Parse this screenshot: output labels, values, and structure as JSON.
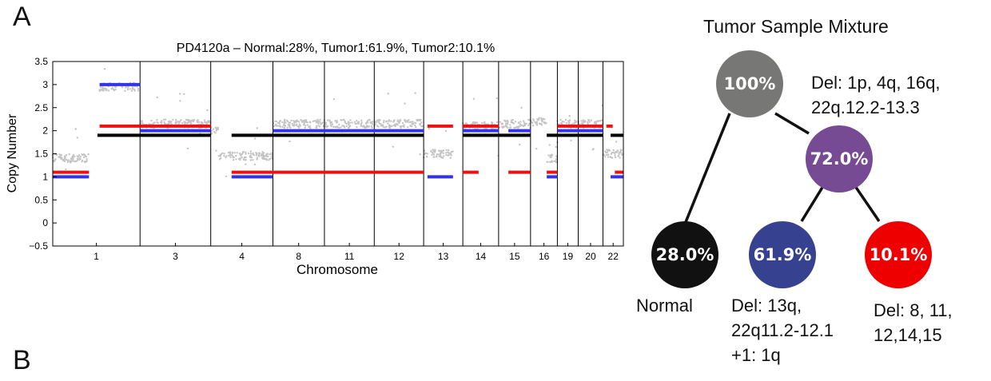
{
  "panel_labels": {
    "a": "A",
    "b": "B"
  },
  "colors": {
    "normal": "#000000",
    "tumor1": "#3333ee",
    "tumor2": "#ee1111",
    "data_points": "#c4c4c4",
    "root_node": "#777775",
    "mid_node": "#774a94",
    "normal_node": "#111111",
    "tumor1_node": "#36418f",
    "tumor2_node": "#ee0000"
  },
  "chart_data": {
    "type": "scatter",
    "title": "PD4120a – Normal:28%, Tumor1:61.9%, Tumor2:10.1%",
    "xlabel": "Chromosome",
    "ylabel": "Copy Number",
    "ylim": [
      -0.5,
      3.5
    ],
    "yticks": [
      -0.5,
      0,
      0.5,
      1,
      1.5,
      2,
      2.5,
      3,
      3.5
    ],
    "ytick_labels": [
      "−0.5",
      "0",
      "0.5",
      "1",
      "1.5",
      "2",
      "2.5",
      "3",
      "3.5"
    ],
    "xlim": [
      0,
      1
    ],
    "chromosomes": [
      {
        "label": "1",
        "start": 0.0,
        "end": 0.205
      },
      {
        "label": "3",
        "start": 0.205,
        "end": 0.371
      },
      {
        "label": "4",
        "start": 0.371,
        "end": 0.517
      },
      {
        "label": "8",
        "start": 0.517,
        "end": 0.638
      },
      {
        "label": "11",
        "start": 0.638,
        "end": 0.755
      },
      {
        "label": "12",
        "start": 0.755,
        "end": 0.871
      },
      {
        "label": "13",
        "start": 0.871,
        "end": 0.963
      },
      {
        "label": "14",
        "start": 0.963,
        "end": 1.047
      },
      {
        "label": "15",
        "start": 1.047,
        "end": 1.122
      },
      {
        "label": "16",
        "start": 1.122,
        "end": 1.185
      },
      {
        "label": "19",
        "start": 1.185,
        "end": 1.234
      },
      {
        "label": "20",
        "start": 1.234,
        "end": 1.292
      },
      {
        "label": "22",
        "start": 1.292,
        "end": 1.34
      }
    ],
    "series": [
      {
        "name": "Normal",
        "segments": [
          {
            "x0": 0.105,
            "x1": 0.371,
            "y": 1.9
          },
          {
            "x0": 0.42,
            "x1": 0.871,
            "y": 1.9
          },
          {
            "x0": 0.963,
            "x1": 1.122,
            "y": 1.9
          },
          {
            "x0": 1.16,
            "x1": 1.292,
            "y": 1.9
          },
          {
            "x0": 1.31,
            "x1": 1.34,
            "y": 1.9
          }
        ]
      },
      {
        "name": "Tumor1",
        "segments": [
          {
            "x0": 0.0,
            "x1": 0.085,
            "y": 1.0
          },
          {
            "x0": 0.11,
            "x1": 0.205,
            "y": 3.0
          },
          {
            "x0": 0.205,
            "x1": 0.371,
            "y": 2.0
          },
          {
            "x0": 0.42,
            "x1": 0.517,
            "y": 1.0
          },
          {
            "x0": 0.517,
            "x1": 0.871,
            "y": 2.0
          },
          {
            "x0": 0.88,
            "x1": 0.94,
            "y": 1.0
          },
          {
            "x0": 0.963,
            "x1": 1.047,
            "y": 2.0
          },
          {
            "x0": 1.07,
            "x1": 1.122,
            "y": 2.0
          },
          {
            "x0": 1.16,
            "x1": 1.185,
            "y": 1.0
          },
          {
            "x0": 1.185,
            "x1": 1.292,
            "y": 2.0
          },
          {
            "x0": 1.31,
            "x1": 1.34,
            "y": 1.0
          }
        ]
      },
      {
        "name": "Tumor2",
        "segments": [
          {
            "x0": 0.0,
            "x1": 0.085,
            "y": 1.1
          },
          {
            "x0": 0.11,
            "x1": 0.205,
            "y": 2.1
          },
          {
            "x0": 0.205,
            "x1": 0.371,
            "y": 2.1
          },
          {
            "x0": 0.42,
            "x1": 0.871,
            "y": 1.1
          },
          {
            "x0": 0.88,
            "x1": 0.94,
            "y": 2.1
          },
          {
            "x0": 0.963,
            "x1": 1.047,
            "y": 2.1
          },
          {
            "x0": 0.963,
            "x1": 1.0,
            "y": 1.1
          },
          {
            "x0": 1.07,
            "x1": 1.122,
            "y": 1.1
          },
          {
            "x0": 1.16,
            "x1": 1.185,
            "y": 1.1
          },
          {
            "x0": 1.185,
            "x1": 1.292,
            "y": 2.1
          },
          {
            "x0": 1.3,
            "x1": 1.315,
            "y": 2.1
          },
          {
            "x0": 1.32,
            "x1": 1.34,
            "y": 1.1
          }
        ]
      }
    ],
    "observed_levels": [
      {
        "x0": 0.0,
        "x1": 0.085,
        "y": 1.4
      },
      {
        "x0": 0.11,
        "x1": 0.205,
        "y": 2.95
      },
      {
        "x0": 0.205,
        "x1": 0.371,
        "y": 2.15
      },
      {
        "x0": 0.371,
        "x1": 0.39,
        "y": 2.0
      },
      {
        "x0": 0.39,
        "x1": 0.517,
        "y": 1.45
      },
      {
        "x0": 0.517,
        "x1": 0.871,
        "y": 2.15
      },
      {
        "x0": 0.871,
        "x1": 0.94,
        "y": 1.5
      },
      {
        "x0": 0.963,
        "x1": 1.047,
        "y": 2.1
      },
      {
        "x0": 1.047,
        "x1": 1.122,
        "y": 2.15
      },
      {
        "x0": 1.122,
        "x1": 1.16,
        "y": 2.2
      },
      {
        "x0": 1.16,
        "x1": 1.185,
        "y": 1.4
      },
      {
        "x0": 1.185,
        "x1": 1.292,
        "y": 2.15
      },
      {
        "x0": 1.292,
        "x1": 1.34,
        "y": 1.5
      }
    ]
  },
  "tree": {
    "title": "Tumor Sample Mixture",
    "nodes": {
      "root": "100%",
      "mid": "72.0%",
      "normal": "28.0%",
      "tumor1": "61.9%",
      "tumor2": "10.1%"
    },
    "labels": {
      "root_del": "Del: 1p, 4q, 16q,\n22q.12.2-13.3",
      "normal": "Normal",
      "tumor1_del": "Del: 13q,\n22q11.2-12.1\n+1: 1q",
      "tumor2_del": "Del: 8, 11,\n12,14,15"
    }
  }
}
